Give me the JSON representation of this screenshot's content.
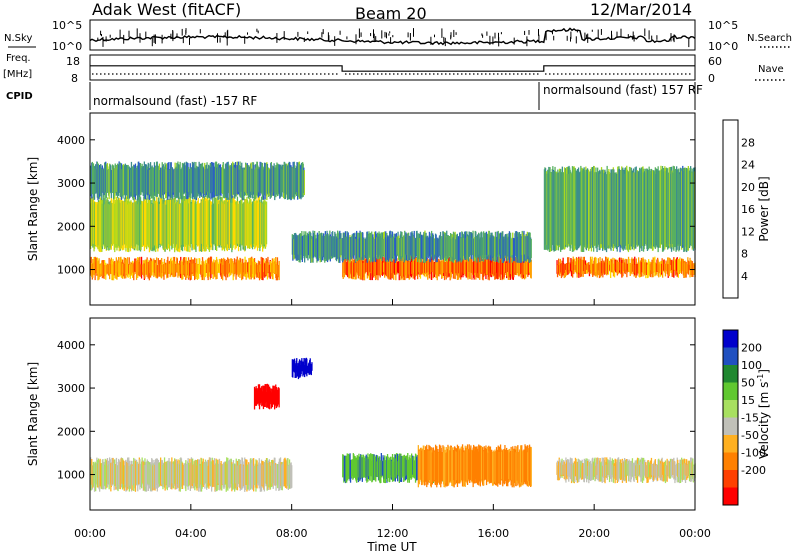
{
  "header": {
    "station": "Adak West (fitACF)",
    "beam": "Beam 20",
    "date": "12/Mar/2014"
  },
  "summary_panels": {
    "nsky_label": "N.Sky",
    "nsearch_label": "N.Search",
    "noise_ticks_left": [
      "10^5",
      "10^0"
    ],
    "noise_ticks_right": [
      "10^5",
      "10^0"
    ],
    "freq_label_line1": "Freq.",
    "freq_label_line2": "[MHz]",
    "freq_ticks": [
      "18",
      "8"
    ],
    "nave_label": "Nave",
    "nave_ticks": [
      "60",
      "0"
    ],
    "cpid_label": "CPID",
    "cpid_segments": [
      {
        "text": "normalsound (fast) -157 RF",
        "start_hour": 0,
        "end_hour": 18
      },
      {
        "text": "normalsound (fast) 157 RF",
        "start_hour": 18,
        "end_hour": 24
      }
    ],
    "freq_trace_mhz": [
      [
        0,
        14.2
      ],
      [
        10,
        14.2
      ],
      [
        10,
        11.2
      ],
      [
        18,
        11.2
      ],
      [
        18,
        14.2
      ],
      [
        24,
        14.2
      ]
    ]
  },
  "chart_data": [
    {
      "type": "heatmap",
      "title": "",
      "xlabel": "Time UT",
      "ylabel": "Slant Range [km]",
      "xlim_hours": [
        0,
        24
      ],
      "x_tick_labels": [
        "00:00",
        "04:00",
        "08:00",
        "12:00",
        "16:00",
        "20:00",
        "00:00"
      ],
      "x_tick_hours": [
        0,
        4,
        8,
        12,
        16,
        20,
        24
      ],
      "ylim_km": [
        180,
        4620
      ],
      "y_ticks_km": [
        1000,
        2000,
        3000,
        4000
      ],
      "y_tick_labels": [
        "1000",
        "2000",
        "3000",
        "4000"
      ],
      "colorbar": {
        "label": "Power [dB]",
        "tick_values": [
          4,
          8,
          12,
          16,
          20,
          24,
          28
        ],
        "tick_labels": [
          "4",
          "8",
          "12",
          "16",
          "20",
          "24",
          "28"
        ],
        "colors": [
          "#0000ff",
          "#2a5cc8",
          "#3d8f8a",
          "#58b060",
          "#a8d820",
          "#ffd800",
          "#ffa000",
          "#ff6000",
          "#ff0000"
        ]
      },
      "series": [
        {
          "hour_start": 0,
          "hour_end": 7.5,
          "range_km_start": 850,
          "range_km_end": 1200,
          "power_db": 24
        },
        {
          "hour_start": 0,
          "hour_end": 7,
          "range_km_start": 1500,
          "range_km_end": 2600,
          "power_db": 16
        },
        {
          "hour_start": 0,
          "hour_end": 8.5,
          "range_km_start": 2700,
          "range_km_end": 3400,
          "power_db": 10
        },
        {
          "hour_start": 10,
          "hour_end": 17.5,
          "range_km_start": 850,
          "range_km_end": 1250,
          "power_db": 26
        },
        {
          "hour_start": 8,
          "hour_end": 17.5,
          "range_km_start": 1250,
          "range_km_end": 1800,
          "power_db": 10
        },
        {
          "hour_start": 18.5,
          "hour_end": 24,
          "range_km_start": 900,
          "range_km_end": 1200,
          "power_db": 25
        },
        {
          "hour_start": 18,
          "hour_end": 24,
          "range_km_start": 1500,
          "range_km_end": 3300,
          "power_db": 12
        }
      ]
    },
    {
      "type": "heatmap",
      "title": "",
      "xlabel": "Time UT",
      "ylabel": "Slant Range [km]",
      "xlim_hours": [
        0,
        24
      ],
      "x_tick_labels": [
        "00:00",
        "04:00",
        "08:00",
        "12:00",
        "16:00",
        "20:00",
        "00:00"
      ],
      "x_tick_hours": [
        0,
        4,
        8,
        12,
        16,
        20,
        24
      ],
      "ylim_km": [
        180,
        4620
      ],
      "y_ticks_km": [
        1000,
        2000,
        3000,
        4000
      ],
      "y_tick_labels": [
        "1000",
        "2000",
        "3000",
        "4000"
      ],
      "colorbar": {
        "label": "Velocity [m s^-1]",
        "tick_values": [
          200,
          100,
          50,
          15,
          -15,
          -50,
          -100,
          -200
        ],
        "tick_labels": [
          "200",
          "100",
          "50",
          "15",
          "-15",
          "-50",
          "-100",
          "-200"
        ],
        "colors": [
          "#0000cc",
          "#2050c0",
          "#208830",
          "#60c830",
          "#a8e060",
          "#c0c0b8",
          "#ffb020",
          "#ff8000",
          "#ff4000",
          "#ff0000"
        ]
      },
      "series": [
        {
          "hour_start": 0,
          "hour_end": 8,
          "range_km_start": 700,
          "range_km_end": 1300,
          "velocity_ms": 0
        },
        {
          "hour_start": 6.5,
          "hour_end": 7.5,
          "range_km_start": 2600,
          "range_km_end": 3000,
          "velocity_ms": -200
        },
        {
          "hour_start": 8,
          "hour_end": 8.8,
          "range_km_start": 3300,
          "range_km_end": 3600,
          "velocity_ms": 200
        },
        {
          "hour_start": 10,
          "hour_end": 14,
          "range_km_start": 900,
          "range_km_end": 1400,
          "velocity_ms": 60
        },
        {
          "hour_start": 13,
          "hour_end": 17.5,
          "range_km_start": 800,
          "range_km_end": 1600,
          "velocity_ms": -60
        },
        {
          "hour_start": 18.5,
          "hour_end": 24,
          "range_km_start": 900,
          "range_km_end": 1300,
          "velocity_ms": 0
        }
      ]
    }
  ]
}
